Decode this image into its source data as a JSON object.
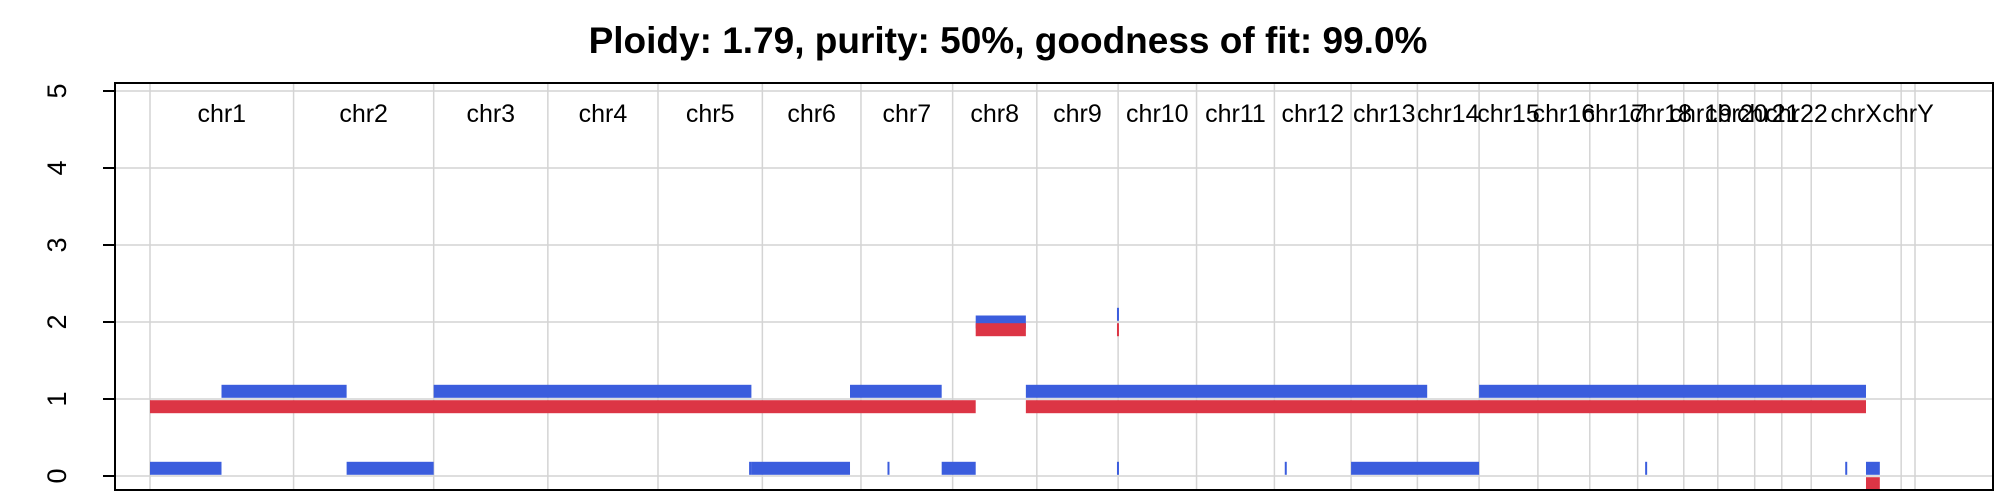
{
  "chart_data": {
    "type": "segments",
    "title": "Ploidy: 1.79, purity: 50%, goodness of fit: 99.0%",
    "xlabel": "",
    "ylabel": "",
    "ylim": [
      0,
      5
    ],
    "yticks": [
      0,
      1,
      2,
      3,
      4,
      5
    ],
    "ytick_labels": [
      "0",
      "1",
      "2",
      "3",
      "4",
      "5"
    ],
    "grid": true,
    "x_units": "Mb (cumulative genome position)",
    "chromosomes": [
      {
        "name": "chr1",
        "length": 249
      },
      {
        "name": "chr2",
        "length": 243
      },
      {
        "name": "chr3",
        "length": 198
      },
      {
        "name": "chr4",
        "length": 191
      },
      {
        "name": "chr5",
        "length": 181
      },
      {
        "name": "chr6",
        "length": 171
      },
      {
        "name": "chr7",
        "length": 159
      },
      {
        "name": "chr8",
        "length": 146
      },
      {
        "name": "chr9",
        "length": 141
      },
      {
        "name": "chr10",
        "length": 136
      },
      {
        "name": "chr11",
        "length": 135
      },
      {
        "name": "chr12",
        "length": 133
      },
      {
        "name": "chr13",
        "length": 115
      },
      {
        "name": "chr14",
        "length": 107
      },
      {
        "name": "chr15",
        "length": 102
      },
      {
        "name": "chr16",
        "length": 90
      },
      {
        "name": "chr17",
        "length": 83
      },
      {
        "name": "chr18",
        "length": 80
      },
      {
        "name": "chr19",
        "length": 59
      },
      {
        "name": "chr20",
        "length": 64
      },
      {
        "name": "chr21",
        "length": 47
      },
      {
        "name": "chr22",
        "length": 51
      },
      {
        "name": "chrX",
        "length": 156
      },
      {
        "name": "chrY",
        "length": 24
      }
    ],
    "series": [
      {
        "color": "#3b5ddd",
        "segments": [
          {
            "x0": 0,
            "x1": 124,
            "value": 0.1
          },
          {
            "x0": 124,
            "x1": 341,
            "value": 1.1
          },
          {
            "x0": 341,
            "x1": 492,
            "value": 0.1
          },
          {
            "x0": 492,
            "x1": 1043,
            "value": 1.1
          },
          {
            "x0": 1039,
            "x1": 1043,
            "value": 0.1
          },
          {
            "x0": 1043,
            "x1": 1214,
            "value": 0.1
          },
          {
            "x0": 1214,
            "x1": 1373,
            "value": 1.1
          },
          {
            "x0": 1279,
            "x1": 1282,
            "value": 0.1
          },
          {
            "x0": 1373,
            "x1": 1432,
            "value": 0.1
          },
          {
            "x0": 1432,
            "x1": 1519,
            "value": 2.0
          },
          {
            "x0": 1519,
            "x1": 2215,
            "value": 1.1
          },
          {
            "x0": 1677,
            "x1": 1680,
            "value": 2.1
          },
          {
            "x0": 1677,
            "x1": 1680,
            "value": 0.1
          },
          {
            "x0": 1968,
            "x1": 1971,
            "value": 0.1
          },
          {
            "x0": 2083,
            "x1": 2305,
            "value": 0.1
          },
          {
            "x0": 2305,
            "x1": 2976,
            "value": 1.1
          },
          {
            "x0": 2593,
            "x1": 2596,
            "value": 0.1
          },
          {
            "x0": 2940,
            "x1": 2943,
            "value": 0.1
          },
          {
            "x0": 2976,
            "x1": 3000,
            "value": 0.1
          }
        ]
      },
      {
        "color": "#dc3545",
        "segments": [
          {
            "x0": 0,
            "x1": 1432,
            "value": 0.9
          },
          {
            "x0": 1432,
            "x1": 1519,
            "value": 1.9
          },
          {
            "x0": 1519,
            "x1": 2976,
            "value": 0.9
          },
          {
            "x0": 1677,
            "x1": 1680,
            "value": 1.9
          },
          {
            "x0": 2976,
            "x1": 3000,
            "value": -0.1
          }
        ]
      }
    ]
  }
}
